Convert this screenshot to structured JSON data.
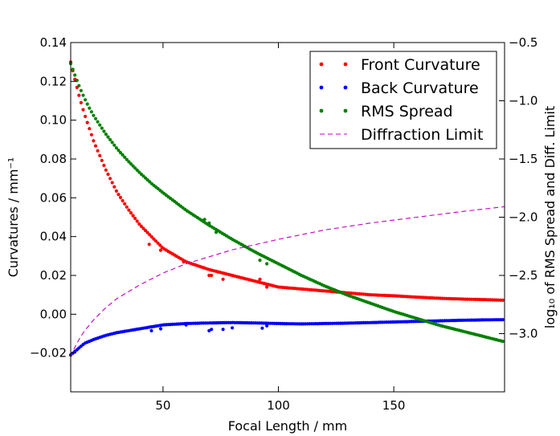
{
  "chart_data": {
    "type": "scatter",
    "xlabel": "Focal Length / mm",
    "ylabel": "Curvatures / mm⁻¹",
    "ylabel_right": "log₁₀ of RMS Spread and Diff. Limit",
    "xlim": [
      10,
      198
    ],
    "ylim": [
      -0.04,
      0.14
    ],
    "ylim_right": [
      -3.5,
      -0.5
    ],
    "x_ticks": [
      50,
      100,
      150
    ],
    "x_tick_labels": [
      "50",
      "100",
      "150"
    ],
    "y_ticks": [
      -0.02,
      0.0,
      0.02,
      0.04,
      0.06,
      0.08,
      0.1,
      0.12,
      0.14
    ],
    "y_tick_labels": [
      "−0.02",
      "0.00",
      "0.02",
      "0.04",
      "0.06",
      "0.08",
      "0.10",
      "0.12",
      "0.14"
    ],
    "y_ticks_right": [
      -3.0,
      -2.5,
      -2.0,
      -1.5,
      -1.0,
      -0.5
    ],
    "y_tick_labels_right": [
      "−3.0",
      "−2.5",
      "−2.0",
      "−1.5",
      "−1.0",
      "−0.5"
    ],
    "legend_position": "top-right",
    "grid": false,
    "series": [
      {
        "name": "Front Curvature",
        "axis": "left",
        "style": "dots",
        "color": "#ff0000",
        "x": [
          10,
          12,
          14,
          16,
          18,
          20,
          25,
          30,
          35,
          40,
          45,
          50,
          60,
          70,
          80,
          90,
          100,
          110,
          120,
          130,
          140,
          150,
          160,
          170,
          180,
          190,
          198
        ],
        "y": [
          0.13,
          0.12,
          0.111,
          0.103,
          0.096,
          0.089,
          0.075,
          0.063,
          0.054,
          0.046,
          0.04,
          0.034,
          0.027,
          0.023,
          0.02,
          0.017,
          0.014,
          0.013,
          0.012,
          0.011,
          0.01,
          0.0095,
          0.0088,
          0.0082,
          0.0078,
          0.0075,
          0.0072
        ]
      },
      {
        "name": "Back Curvature",
        "axis": "left",
        "style": "dots",
        "color": "#0000ff",
        "x": [
          10,
          12,
          14,
          16,
          18,
          20,
          25,
          30,
          35,
          40,
          45,
          50,
          60,
          70,
          80,
          90,
          100,
          110,
          120,
          130,
          140,
          150,
          160,
          170,
          180,
          190,
          198
        ],
        "y": [
          -0.021,
          -0.019,
          -0.017,
          -0.015,
          -0.014,
          -0.013,
          -0.011,
          -0.0095,
          -0.0085,
          -0.0075,
          -0.0065,
          -0.0055,
          -0.0048,
          -0.0045,
          -0.0043,
          -0.0045,
          -0.0048,
          -0.005,
          -0.0048,
          -0.0046,
          -0.0043,
          -0.004,
          -0.0037,
          -0.0034,
          -0.0031,
          -0.0029,
          -0.0028
        ]
      },
      {
        "name": "RMS Spread",
        "axis": "right",
        "style": "dots",
        "color": "#008000",
        "x": [
          10,
          12,
          14,
          16,
          18,
          20,
          25,
          30,
          35,
          40,
          45,
          50,
          60,
          70,
          80,
          90,
          100,
          110,
          120,
          130,
          140,
          150,
          160,
          170,
          180,
          190,
          198
        ],
        "y": [
          -0.68,
          -0.79,
          -0.89,
          -0.98,
          -1.06,
          -1.13,
          -1.28,
          -1.41,
          -1.52,
          -1.62,
          -1.71,
          -1.79,
          -1.94,
          -2.07,
          -2.19,
          -2.3,
          -2.4,
          -2.5,
          -2.59,
          -2.67,
          -2.74,
          -2.81,
          -2.87,
          -2.93,
          -2.98,
          -3.03,
          -3.07
        ]
      },
      {
        "name": "Diffraction Limit",
        "axis": "right",
        "style": "dashed",
        "color": "#bf00bf",
        "x": [
          10,
          12,
          15,
          20,
          25,
          30,
          40,
          50,
          60,
          70,
          80,
          100,
          120,
          140,
          160,
          180,
          198
        ],
        "y": [
          -3.2,
          -3.11,
          -3.0,
          -2.88,
          -2.78,
          -2.7,
          -2.58,
          -2.48,
          -2.4,
          -2.34,
          -2.28,
          -2.19,
          -2.11,
          -2.05,
          -2.0,
          -1.95,
          -1.91
        ]
      }
    ],
    "outliers": {
      "front": {
        "x": [
          44,
          49,
          59,
          70,
          71,
          76,
          92,
          95
        ],
        "y": [
          0.036,
          0.033,
          0.027,
          0.02,
          0.02,
          0.018,
          0.018,
          0.014
        ]
      },
      "back": {
        "x": [
          45,
          49,
          60,
          70,
          71,
          76,
          80,
          93,
          95
        ],
        "y": [
          -0.0085,
          -0.0075,
          -0.0055,
          -0.0085,
          -0.0078,
          -0.0078,
          -0.007,
          -0.0072,
          -0.006
        ]
      },
      "rms": {
        "x": [
          68,
          70,
          73,
          92,
          95
        ],
        "y": [
          -2.02,
          -2.05,
          -2.13,
          -2.37,
          -2.4
        ]
      }
    }
  }
}
